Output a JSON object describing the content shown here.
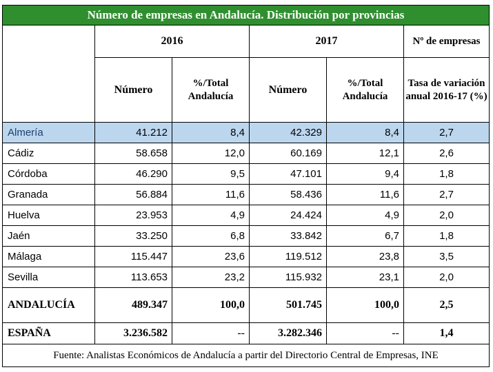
{
  "title": "Número de empresas en Andalucía. Distribución por provincias",
  "headers": {
    "year_2016": "2016",
    "year_2017": "2017",
    "n_empresas": "Nº de empresas",
    "numero": "Número",
    "pct_total": "%/Total Andalucía",
    "tasa": "Tasa de variación anual 2016-17 (%)"
  },
  "rows": [
    {
      "name": "Almería",
      "n2016": "41.212",
      "p2016": "8,4",
      "n2017": "42.329",
      "p2017": "8,4",
      "rate": "2,7"
    },
    {
      "name": "Cádiz",
      "n2016": "58.658",
      "p2016": "12,0",
      "n2017": "60.169",
      "p2017": "12,1",
      "rate": "2,6"
    },
    {
      "name": "Córdoba",
      "n2016": "46.290",
      "p2016": "9,5",
      "n2017": "47.101",
      "p2017": "9,4",
      "rate": "1,8"
    },
    {
      "name": "Granada",
      "n2016": "56.884",
      "p2016": "11,6",
      "n2017": "58.436",
      "p2017": "11,6",
      "rate": "2,7"
    },
    {
      "name": "Huelva",
      "n2016": "23.953",
      "p2016": "4,9",
      "n2017": "24.424",
      "p2017": "4,9",
      "rate": "2,0"
    },
    {
      "name": "Jaén",
      "n2016": "33.250",
      "p2016": "6,8",
      "n2017": "33.842",
      "p2017": "6,7",
      "rate": "1,8"
    },
    {
      "name": "Málaga",
      "n2016": "115.447",
      "p2016": "23,6",
      "n2017": "119.512",
      "p2017": "23,8",
      "rate": "3,5"
    },
    {
      "name": "Sevilla",
      "n2016": "113.653",
      "p2016": "23,2",
      "n2017": "115.932",
      "p2017": "23,1",
      "rate": "2,0"
    }
  ],
  "totals": [
    {
      "name": "ANDALUCÍA",
      "n2016": "489.347",
      "p2016": "100,0",
      "n2017": "501.745",
      "p2017": "100,0",
      "rate": "2,5"
    },
    {
      "name": "ESPAÑA",
      "n2016": "3.236.582",
      "p2016": "--",
      "n2017": "3.282.346",
      "p2017": "--",
      "rate": "1,4"
    }
  ],
  "source": "Fuente: Analistas Económicos de Andalucía a partir del Directorio Central de Empresas, INE",
  "colors": {
    "title_bg": "#2f8f2f",
    "highlight_row": "#bcd6ee"
  }
}
